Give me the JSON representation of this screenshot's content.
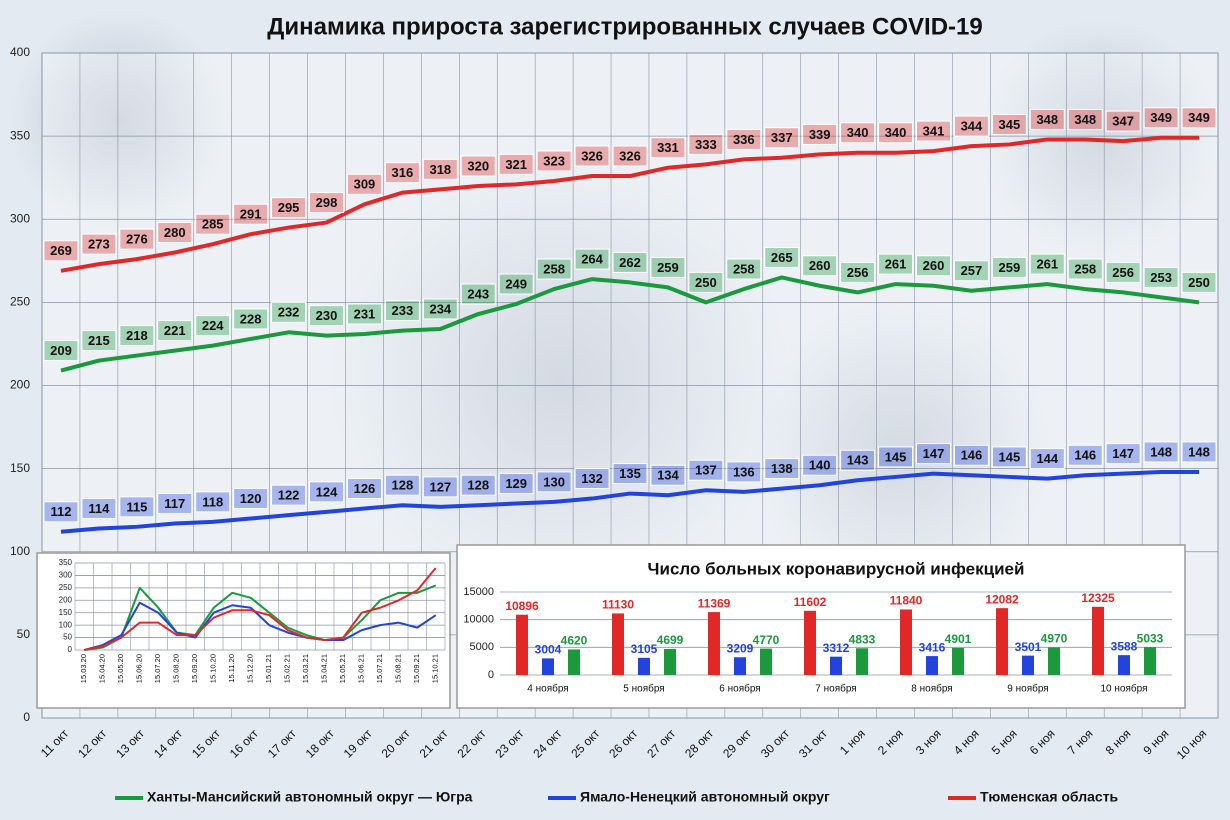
{
  "chart_data": [
    {
      "type": "line",
      "title": "Динамика прироста зарегистрированных случаев COVID-19",
      "categories": [
        "11 окт",
        "12 окт",
        "13 окт",
        "14 окт",
        "15 окт",
        "16 окт",
        "17 окт",
        "18 окт",
        "19 окт",
        "20 окт",
        "21 окт",
        "22 окт",
        "23 окт",
        "24 окт",
        "25 окт",
        "26 окт",
        "27 окт",
        "28 окт",
        "29 окт",
        "30 окт",
        "31 окт",
        "1 ноя",
        "2 ноя",
        "3 ноя",
        "4 ноя",
        "5 ноя",
        "6 ноя",
        "7 ноя",
        "8 ноя",
        "9 ноя",
        "10 ноя"
      ],
      "series": [
        {
          "name": "Ханты-Мансийский автономный округ — Югра",
          "color": "#1a9a3c",
          "values": [
            209,
            215,
            218,
            221,
            224,
            228,
            232,
            230,
            231,
            233,
            234,
            243,
            249,
            258,
            264,
            262,
            259,
            250,
            258,
            265,
            260,
            256,
            261,
            260,
            257,
            259,
            261,
            258,
            256,
            253,
            250
          ]
        },
        {
          "name": "Ямало-Ненецкий автономный округ",
          "color": "#2244dd",
          "values": [
            112,
            114,
            115,
            117,
            118,
            120,
            122,
            124,
            126,
            128,
            127,
            128,
            129,
            130,
            132,
            135,
            134,
            137,
            136,
            138,
            140,
            143,
            145,
            147,
            146,
            145,
            144,
            146,
            147,
            148,
            148
          ]
        },
        {
          "name": "Тюменская область",
          "color": "#e02828",
          "values": [
            269,
            273,
            276,
            280,
            285,
            291,
            295,
            298,
            309,
            316,
            318,
            320,
            321,
            323,
            326,
            326,
            331,
            333,
            336,
            337,
            339,
            340,
            340,
            341,
            344,
            345,
            348,
            348,
            347,
            349,
            349
          ]
        }
      ],
      "ylim": [
        0,
        400
      ],
      "yticks": [
        0,
        50,
        100,
        150,
        200,
        250,
        300,
        350,
        400
      ],
      "grid": true,
      "data_labels": true,
      "legend": "bottom"
    },
    {
      "type": "line",
      "categories": [
        "15.03.20",
        "15.04.20",
        "15.05.20",
        "15.06.20",
        "15.07.20",
        "15.08.20",
        "15.09.20",
        "15.10.20",
        "15.11.20",
        "15.12.20",
        "15.01.21",
        "15.02.21",
        "15.03.21",
        "15.04.21",
        "15.05.21",
        "15.06.21",
        "15.07.21",
        "15.08.21",
        "15.09.21",
        "15.10.21"
      ],
      "series": [
        {
          "color": "#1a9a3c",
          "values": [
            0,
            10,
            50,
            250,
            170,
            70,
            60,
            170,
            230,
            210,
            150,
            90,
            60,
            40,
            50,
            120,
            200,
            230,
            230,
            260
          ]
        },
        {
          "color": "#2244dd",
          "values": [
            0,
            20,
            60,
            190,
            150,
            70,
            50,
            150,
            180,
            170,
            100,
            70,
            50,
            40,
            40,
            80,
            100,
            110,
            90,
            140
          ]
        },
        {
          "color": "#e02828",
          "values": [
            0,
            15,
            50,
            110,
            110,
            60,
            60,
            130,
            160,
            160,
            140,
            80,
            50,
            40,
            50,
            150,
            170,
            200,
            240,
            330
          ]
        }
      ],
      "ylim": [
        0,
        350
      ],
      "yticks": [
        0,
        50,
        100,
        150,
        200,
        250,
        300,
        350
      ],
      "grid": true
    },
    {
      "type": "bar",
      "title": "Число больных коронавирусной  инфекцией",
      "categories": [
        "4 ноября",
        "5 ноября",
        "6 ноября",
        "7 ноября",
        "8 ноября",
        "9 ноября",
        "10 ноября"
      ],
      "series": [
        {
          "color": "#e02828",
          "values": [
            10896,
            11130,
            11369,
            11602,
            11840,
            12082,
            12325
          ]
        },
        {
          "color": "#2244dd",
          "values": [
            3004,
            3105,
            3209,
            3312,
            3416,
            3501,
            3588
          ]
        },
        {
          "color": "#1a9a3c",
          "values": [
            4620,
            4699,
            4770,
            4833,
            4901,
            4970,
            5033
          ]
        }
      ],
      "ylim": [
        0,
        15000
      ],
      "yticks": [
        0,
        5000,
        10000,
        15000
      ],
      "grid": true,
      "data_labels": true
    }
  ]
}
